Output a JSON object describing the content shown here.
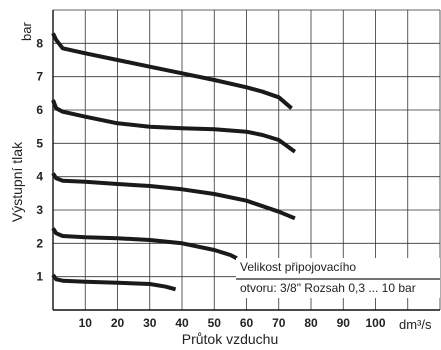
{
  "chart_data": {
    "type": "line",
    "title": "",
    "xlabel": "Průtok vzduchu",
    "ylabel": "Výstupní tlak",
    "x_unit": "dm³/s",
    "y_unit": "bar",
    "xlim": [
      0,
      120
    ],
    "ylim": [
      0,
      9
    ],
    "x_ticks": [
      10,
      20,
      30,
      40,
      50,
      60,
      70,
      80,
      90,
      100
    ],
    "y_ticks": [
      1,
      2,
      3,
      4,
      5,
      6,
      7,
      8
    ],
    "grid": true,
    "line_color": "#1a1a1a",
    "series": [
      {
        "x": [
          0,
          1,
          3,
          10,
          20,
          30,
          35,
          38
        ],
        "y": [
          1.05,
          0.92,
          0.88,
          0.85,
          0.82,
          0.78,
          0.7,
          0.62
        ]
      },
      {
        "x": [
          0,
          1,
          3,
          10,
          20,
          30,
          40,
          50,
          55,
          57
        ],
        "y": [
          2.45,
          2.3,
          2.22,
          2.18,
          2.15,
          2.1,
          2.0,
          1.8,
          1.65,
          1.55
        ]
      },
      {
        "x": [
          0,
          1,
          3,
          10,
          20,
          30,
          40,
          50,
          60,
          70,
          75
        ],
        "y": [
          4.1,
          3.95,
          3.88,
          3.85,
          3.78,
          3.72,
          3.62,
          3.48,
          3.28,
          2.95,
          2.75
        ]
      },
      {
        "x": [
          0,
          1,
          3,
          10,
          20,
          30,
          40,
          50,
          60,
          65,
          70,
          75
        ],
        "y": [
          6.3,
          6.05,
          5.95,
          5.8,
          5.6,
          5.5,
          5.45,
          5.42,
          5.35,
          5.25,
          5.1,
          4.75
        ]
      },
      {
        "x": [
          0,
          1,
          3,
          10,
          20,
          30,
          40,
          50,
          60,
          65,
          70,
          74
        ],
        "y": [
          8.3,
          8.1,
          7.85,
          7.7,
          7.5,
          7.3,
          7.1,
          6.9,
          6.68,
          6.55,
          6.38,
          6.05
        ]
      }
    ],
    "annotation": {
      "line1": "Velikost připojovacího",
      "line2": "otvoru: 3/8\"  Rozsah 0,3 ... 10 bar"
    }
  }
}
